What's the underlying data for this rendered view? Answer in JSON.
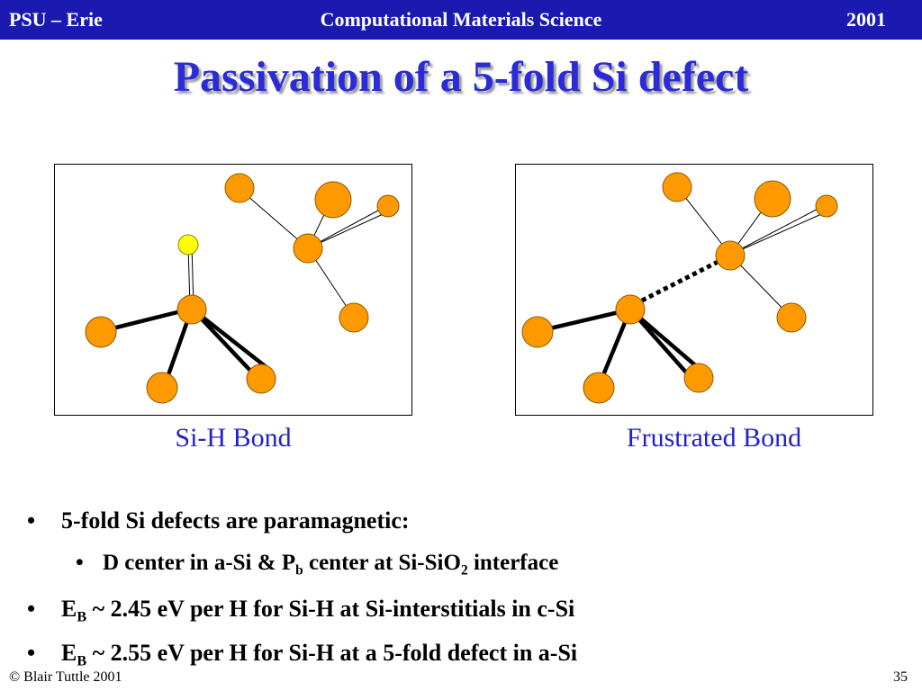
{
  "header": {
    "left": "PSU – Erie",
    "center": "Computational Materials Science",
    "right": "2001"
  },
  "title": "Passivation of a 5-fold Si defect",
  "colors": {
    "header_bg": "#1a1ab0",
    "title": "#2b2bd8",
    "atom_si": "#ff9900",
    "atom_h": "#ffff00",
    "caption": "#2222cc"
  },
  "figures": [
    {
      "caption": "Si-H Bond"
    },
    {
      "caption": "Frustrated Bond"
    }
  ],
  "bullets": {
    "b1": {
      "marker": "•",
      "text": "5-fold Si defects are paramagnetic:"
    },
    "b2": {
      "marker": "•",
      "t1": "D center in a-Si  & P",
      "s1": "b",
      "t2": " center at Si-SiO",
      "s2": "2",
      "t3": " interface"
    },
    "b3": {
      "marker": "•",
      "t1": "E",
      "s1": "B",
      "t2": " ~ 2.45 eV per H  for Si-H at Si-interstitials in c-Si"
    },
    "b4": {
      "marker": "•",
      "t1": "E",
      "s1": "B",
      "t2": " ~ 2.55 eV per H  for Si-H at  a 5-fold defect in a-Si"
    }
  },
  "footer": {
    "left": "© Blair Tuttle 2001",
    "right": "35"
  }
}
